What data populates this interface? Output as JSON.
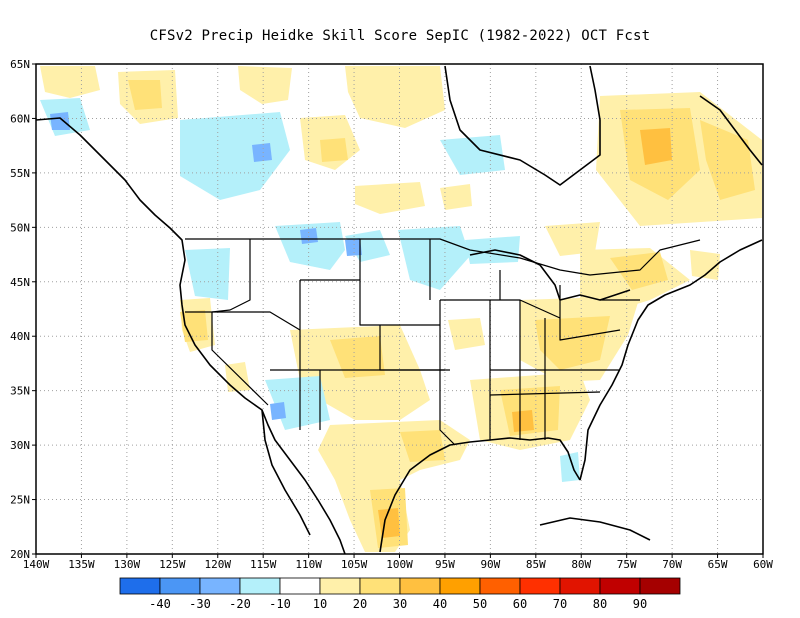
{
  "title": "CFSv2 Precip Heidke Skill Score SepIC (1982-2022) OCT Fcst",
  "lat_labels": [
    "65N",
    "60N",
    "55N",
    "50N",
    "45N",
    "40N",
    "35N",
    "30N",
    "25N",
    "20N"
  ],
  "lon_labels": [
    "140W",
    "135W",
    "130W",
    "125W",
    "120W",
    "115W",
    "110W",
    "105W",
    "100W",
    "95W",
    "90W",
    "85W",
    "80W",
    "75W",
    "70W",
    "65W",
    "60W"
  ],
  "colorbar": {
    "colors": [
      "#1e6eeb",
      "#4b96f5",
      "#78b4ff",
      "#b4f0fa",
      "#ffffff",
      "#fff0aa",
      "#ffe178",
      "#ffc040",
      "#ffa000",
      "#ff6000",
      "#ff3000",
      "#e11400",
      "#c00000",
      "#a50000"
    ],
    "labels": [
      "-40",
      "-30",
      "-20",
      "-10",
      "10",
      "20",
      "30",
      "40",
      "50",
      "60",
      "70",
      "80",
      "90"
    ]
  },
  "colors": {
    "light_yellow": "#fff0aa",
    "yellow": "#ffe178",
    "orange_light": "#ffc040",
    "light_blue": "#b4f0fa",
    "mid_blue": "#78b4ff",
    "blue": "#4b96f5"
  }
}
